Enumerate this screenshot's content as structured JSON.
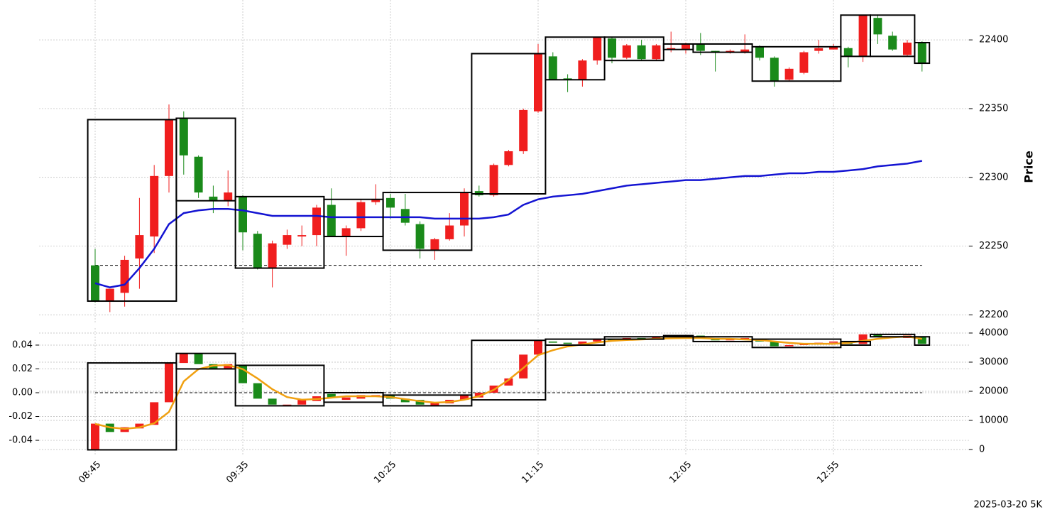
{
  "footnote": "2025-03-20 5K",
  "chart_data": [
    {
      "type": "candlestick",
      "y_label": "Price",
      "grid": true,
      "up_color": "#f01e1e",
      "down_color": "#1a8a1a",
      "ylim": [
        22194,
        22429
      ],
      "yticks": [
        22200,
        22250,
        22300,
        22350,
        22400
      ],
      "open": [
        22236,
        22210,
        22216,
        22241,
        22257,
        22301,
        22343,
        22315,
        22286,
        22283,
        22286,
        22259,
        22234,
        22251,
        22257,
        22258,
        22280,
        22257,
        22263,
        22282,
        22285,
        22277,
        22266,
        22247,
        22255,
        22265,
        22290,
        22287,
        22309,
        22319,
        22348,
        22388,
        22372,
        22371,
        22385,
        22401,
        22387,
        22396,
        22386,
        22393,
        22393,
        22397,
        22392,
        22391,
        22391,
        22395,
        22387,
        22371,
        22376,
        22392,
        22393,
        22394,
        22388,
        22416,
        22403,
        22389,
        22398
      ],
      "high": [
        22248,
        22219,
        22243,
        22285,
        22309,
        22353,
        22348,
        22316,
        22294,
        22305,
        22287,
        22261,
        22254,
        22262,
        22265,
        22280,
        22292,
        22265,
        22284,
        22295,
        22288,
        22288,
        22268,
        22256,
        22274,
        22292,
        22294,
        22310,
        22320,
        22350,
        22397,
        22391,
        22375,
        22386,
        22402,
        22402,
        22397,
        22400,
        22397,
        22406,
        22398,
        22405,
        22392,
        22393,
        22404,
        22396,
        22388,
        22380,
        22392,
        22400,
        22397,
        22395,
        22418,
        22418,
        22406,
        22400,
        22399
      ],
      "low": [
        22209,
        22202,
        22206,
        22219,
        22245,
        22289,
        22302,
        22285,
        22274,
        22279,
        22247,
        22233,
        22220,
        22248,
        22250,
        22250,
        22257,
        22243,
        22261,
        22280,
        22270,
        22265,
        22241,
        22240,
        22254,
        22257,
        22286,
        22286,
        22308,
        22317,
        22347,
        22371,
        22362,
        22366,
        22382,
        22383,
        22386,
        22385,
        22385,
        22391,
        22390,
        22389,
        22377,
        22390,
        22390,
        22385,
        22366,
        22370,
        22375,
        22390,
        22393,
        22380,
        22384,
        22397,
        22392,
        22388,
        22377
      ],
      "close": [
        22210,
        22219,
        22240,
        22258,
        22301,
        22342,
        22316,
        22289,
        22283,
        22289,
        22260,
        22234,
        22252,
        22258,
        22258,
        22278,
        22257,
        22263,
        22282,
        22284,
        22278,
        22267,
        22248,
        22255,
        22265,
        22289,
        22287,
        22309,
        22319,
        22349,
        22390,
        22371,
        22371,
        22385,
        22402,
        22387,
        22396,
        22386,
        22396,
        22394,
        22397,
        22392,
        22391,
        22392,
        22393,
        22387,
        22370,
        22379,
        22391,
        22394,
        22395,
        22388,
        22418,
        22404,
        22393,
        22398,
        22383
      ],
      "series": [
        {
          "color": "#1414d2",
          "values": [
            22223,
            22220,
            22222,
            22234,
            22248,
            22266,
            22274,
            22276,
            22277,
            22277,
            22276,
            22274,
            22272,
            22272,
            22272,
            22272,
            22271,
            22271,
            22271,
            22271,
            22271,
            22271,
            22271,
            22270,
            22270,
            22270,
            22270,
            22271,
            22273,
            22280,
            22284,
            22286,
            22287,
            22288,
            22290,
            22292,
            22294,
            22295,
            22296,
            22297,
            22298,
            22298,
            22299,
            22300,
            22301,
            22301,
            22302,
            22303,
            22303,
            22304,
            22304,
            22305,
            22306,
            22308,
            22309,
            22310,
            22312
          ]
        }
      ],
      "hline": 22236,
      "boxes": [
        {
          "first": 0,
          "last": 5,
          "low": 22210,
          "high": 22342
        },
        {
          "first": 6,
          "last": 9,
          "low": 22283,
          "high": 22343
        },
        {
          "first": 10,
          "last": 15,
          "low": 22234,
          "high": 22286
        },
        {
          "first": 16,
          "last": 19,
          "low": 22257,
          "high": 22284
        },
        {
          "first": 20,
          "last": 25,
          "low": 22247,
          "high": 22289
        },
        {
          "first": 26,
          "last": 30,
          "low": 22288,
          "high": 22390
        },
        {
          "first": 31,
          "last": 34,
          "low": 22371,
          "high": 22402
        },
        {
          "first": 35,
          "last": 38,
          "low": 22385,
          "high": 22402
        },
        {
          "first": 39,
          "last": 40,
          "low": 22393,
          "high": 22397
        },
        {
          "first": 41,
          "last": 44,
          "low": 22391,
          "high": 22397
        },
        {
          "first": 45,
          "last": 50,
          "low": 22370,
          "high": 22395
        },
        {
          "first": 51,
          "last": 52,
          "low": 22388,
          "high": 22418
        },
        {
          "first": 53,
          "last": 55,
          "low": 22388,
          "high": 22418
        },
        {
          "first": 56,
          "last": 56,
          "low": 22383,
          "high": 22398
        }
      ]
    },
    {
      "type": "candlestick",
      "grid": true,
      "up_color": "#f01e1e",
      "down_color": "#1a8a1a",
      "categories": [
        "08:45",
        null,
        null,
        null,
        null,
        null,
        null,
        null,
        null,
        null,
        "09:35",
        null,
        null,
        null,
        null,
        null,
        null,
        null,
        null,
        null,
        "10:25",
        null,
        null,
        null,
        null,
        null,
        null,
        null,
        null,
        null,
        "11:15",
        null,
        null,
        null,
        null,
        null,
        null,
        null,
        null,
        null,
        "12:05",
        null,
        null,
        null,
        null,
        null,
        null,
        null,
        null,
        null,
        "12:55",
        null,
        null,
        null,
        null,
        null,
        null
      ],
      "ylim": [
        -0.0525,
        0.0543
      ],
      "yticks": [
        -0.04,
        -0.02,
        {
          "value": 0,
          "label": "0.00"
        },
        0.02,
        0.04
      ],
      "y2lim": [
        -1950,
        41700
      ],
      "y2ticks": [
        0,
        10000,
        20000,
        30000,
        40000
      ],
      "open": [
        -0.048,
        -0.026,
        -0.033,
        -0.03,
        -0.027,
        -0.008,
        0.025,
        0.033,
        0.024,
        0.02,
        0.023,
        0.008,
        -0.005,
        -0.01,
        -0.01,
        -0.007,
        -0.001,
        -0.006,
        -0.005,
        -0.003,
        -0.002,
        -0.005,
        -0.006,
        -0.011,
        -0.009,
        -0.006,
        -0.004,
        0,
        0.006,
        0.012,
        0.032,
        0.043,
        0.042,
        0.041,
        0.043,
        0.045,
        0.045,
        0.046,
        0.045,
        0.047,
        0.047,
        0.048,
        0.046,
        0.044,
        0.045,
        0.045,
        0.043,
        0.039,
        0.04,
        0.041,
        0.042,
        0.043,
        0.041,
        0.049,
        0.047,
        0.046,
        0.047
      ],
      "close": [
        -0.026,
        -0.033,
        -0.029,
        -0.026,
        -0.008,
        0.025,
        0.033,
        0.024,
        0.02,
        0.024,
        0.008,
        -0.005,
        -0.01,
        -0.01,
        -0.006,
        -0.003,
        -0.004,
        -0.004,
        -0.002,
        -0.002,
        -0.005,
        -0.008,
        -0.01,
        -0.008,
        -0.006,
        -0.002,
        0,
        0.006,
        0.012,
        0.032,
        0.044,
        0.042,
        0.041,
        0.043,
        0.045,
        0.044,
        0.046,
        0.045,
        0.047,
        0.048,
        0.048,
        0.046,
        0.044,
        0.045,
        0.046,
        0.043,
        0.039,
        0.04,
        0.041,
        0.042,
        0.043,
        0.041,
        0.049,
        0.047,
        0.046,
        0.048,
        0.041
      ],
      "series": [
        {
          "color": "#f0a010",
          "axis": "y2",
          "values": [
            8800,
            7600,
            7100,
            7600,
            9000,
            12900,
            23400,
            27600,
            28800,
            29000,
            27600,
            24400,
            20700,
            18000,
            17100,
            17300,
            17800,
            18300,
            18300,
            18300,
            18000,
            17300,
            16600,
            16100,
            16300,
            17100,
            18300,
            20500,
            23900,
            28000,
            32400,
            34100,
            35400,
            36100,
            36800,
            37300,
            37600,
            37800,
            38000,
            38200,
            38300,
            38300,
            38000,
            38000,
            37800,
            37600,
            37100,
            36600,
            36300,
            36300,
            36300,
            36600,
            37300,
            38000,
            38500,
            38800,
            38000
          ]
        }
      ],
      "hline": 0,
      "boxes": [
        {
          "first": 0,
          "last": 5,
          "low": -0.048,
          "high": 0.025
        },
        {
          "first": 6,
          "last": 9,
          "low": 0.02,
          "high": 0.033
        },
        {
          "first": 10,
          "last": 15,
          "low": -0.011,
          "high": 0.023
        },
        {
          "first": 16,
          "last": 19,
          "low": -0.008,
          "high": 0
        },
        {
          "first": 20,
          "last": 25,
          "low": -0.011,
          "high": -0.002
        },
        {
          "first": 26,
          "last": 30,
          "low": -0.006,
          "high": 0.044
        },
        {
          "first": 31,
          "last": 34,
          "low": 0.04,
          "high": 0.045
        },
        {
          "first": 35,
          "last": 38,
          "low": 0.045,
          "high": 0.047
        },
        {
          "first": 39,
          "last": 40,
          "low": 0.047,
          "high": 0.048
        },
        {
          "first": 41,
          "last": 44,
          "low": 0.043,
          "high": 0.047
        },
        {
          "first": 45,
          "last": 50,
          "low": 0.038,
          "high": 0.045
        },
        {
          "first": 51,
          "last": 52,
          "low": 0.04,
          "high": 0.043
        },
        {
          "first": 53,
          "last": 55,
          "low": 0.047,
          "high": 0.049
        },
        {
          "first": 56,
          "last": 56,
          "low": 0.04,
          "high": 0.047
        }
      ]
    }
  ]
}
